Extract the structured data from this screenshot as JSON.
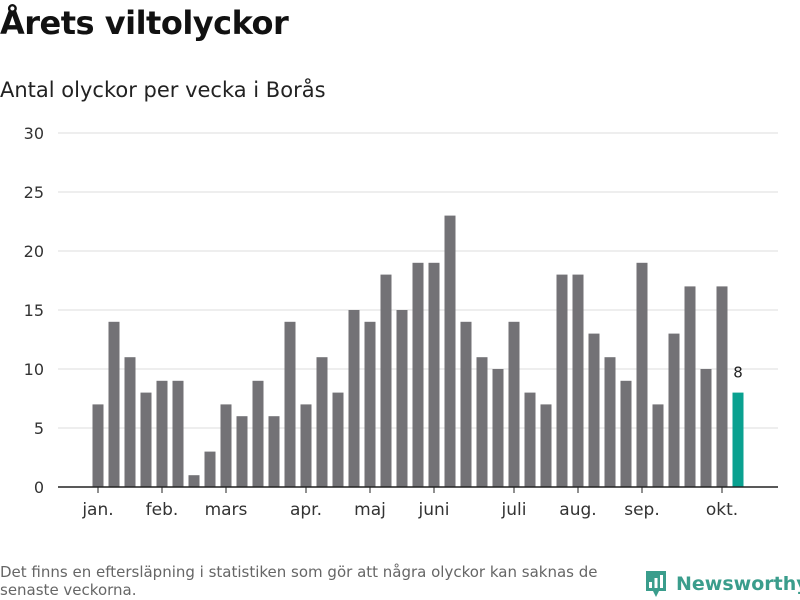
{
  "header": {
    "title": "Årets viltolyckor",
    "subtitle": "Antal olyckor per vecka i Borås"
  },
  "footer": {
    "note": "Det finns en eftersläpning i statistiken som gör att några olyckor kan saknas de senaste veckorna.",
    "brand": "Newsworthy"
  },
  "colors": {
    "bar": "#737276",
    "highlight": "#0aa190",
    "grid": "#dddddd",
    "axis": "#222222",
    "brand": "#3a9d8c"
  },
  "chart_data": {
    "type": "bar",
    "title": "Antal olyckor per vecka i Borås",
    "xlabel": "",
    "ylabel": "",
    "ylim": [
      0,
      30
    ],
    "yticks": [
      0,
      5,
      10,
      15,
      20,
      25,
      30
    ],
    "grid": true,
    "weeks": [
      1,
      2,
      3,
      4,
      5,
      6,
      7,
      8,
      9,
      10,
      11,
      12,
      13,
      14,
      15,
      16,
      17,
      18,
      19,
      20,
      21,
      22,
      23,
      24,
      25,
      26,
      27,
      28,
      29,
      30,
      31,
      32,
      33,
      34,
      35,
      36,
      37,
      38,
      39,
      40,
      41
    ],
    "values": [
      7,
      14,
      11,
      8,
      9,
      9,
      1,
      3,
      7,
      6,
      9,
      6,
      14,
      7,
      11,
      8,
      15,
      14,
      18,
      15,
      19,
      19,
      23,
      14,
      11,
      10,
      14,
      8,
      7,
      18,
      18,
      13,
      11,
      9,
      19,
      7,
      13,
      17,
      10,
      17,
      8
    ],
    "highlight_week": 41,
    "highlight_label": "8",
    "month_labels": [
      {
        "week": 1,
        "label": "jan."
      },
      {
        "week": 5,
        "label": "feb."
      },
      {
        "week": 9,
        "label": "mars"
      },
      {
        "week": 14,
        "label": "apr."
      },
      {
        "week": 18,
        "label": "maj"
      },
      {
        "week": 22,
        "label": "juni"
      },
      {
        "week": 27,
        "label": "juli"
      },
      {
        "week": 31,
        "label": "aug."
      },
      {
        "week": 35,
        "label": "sep."
      },
      {
        "week": 40,
        "label": "okt."
      }
    ]
  }
}
